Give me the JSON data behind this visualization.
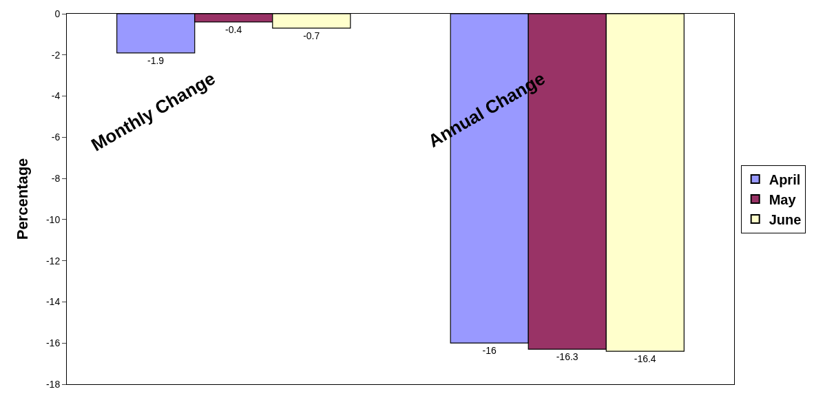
{
  "chart_data": {
    "type": "bar",
    "ylabel": "Percentage",
    "categories": [
      "Monthly Change",
      "Annual Change"
    ],
    "series": [
      {
        "name": "April",
        "color": "#9999ff",
        "values": [
          -1.9,
          -16
        ]
      },
      {
        "name": "May",
        "color": "#993366",
        "values": [
          -0.4,
          -16.3
        ]
      },
      {
        "name": "June",
        "color": "#ffffcc",
        "values": [
          -0.7,
          -16.4
        ]
      }
    ],
    "ylim": [
      -18,
      0
    ],
    "yticks": [
      -18,
      -16,
      -14,
      -12,
      -10,
      -8,
      -6,
      -4,
      -2,
      0
    ],
    "data_labels": true,
    "legend": "right"
  }
}
